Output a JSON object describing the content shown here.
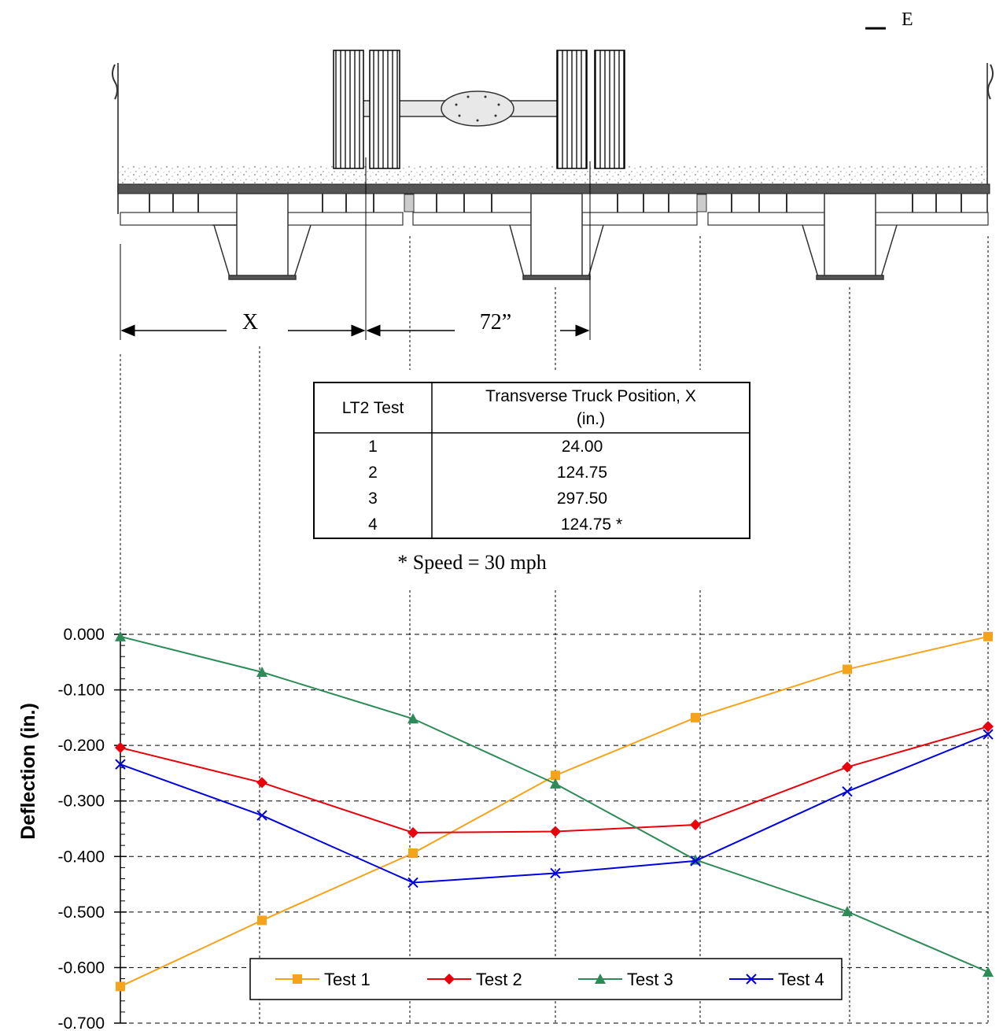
{
  "drawing": {
    "centerline_mark": "E",
    "dim_x_label": "X",
    "dim_72_label": "72”",
    "speed_note": "* Speed = 30 mph"
  },
  "table": {
    "headers": [
      "LT2 Test",
      "Transverse Truck Position, X",
      "(in.)"
    ],
    "rows": [
      [
        "1",
        "24.00"
      ],
      [
        "2",
        "124.75"
      ],
      [
        "3",
        "297.50"
      ],
      [
        "4",
        "124.75 *"
      ]
    ]
  },
  "chart_data": {
    "type": "line",
    "title": "",
    "xlabel": "",
    "ylabel": "Deflection (in.)",
    "ylim": [
      -0.7,
      0.0
    ],
    "yticks": [
      "0.000",
      "-0.100",
      "-0.200",
      "-0.300",
      "-0.400",
      "-0.500",
      "-0.600",
      "-0.700"
    ],
    "x": [
      1,
      2,
      3,
      4,
      5,
      6,
      7
    ],
    "grid": true,
    "legend_position": "bottom-center",
    "series": [
      {
        "name": "Test 1",
        "color": "#f5a31a",
        "marker": "square",
        "values": [
          -0.634,
          -0.515,
          -0.394,
          -0.254,
          -0.15,
          -0.063,
          -0.004
        ]
      },
      {
        "name": "Test 2",
        "color": "#e8000b",
        "marker": "diamond",
        "values": [
          -0.204,
          -0.267,
          -0.357,
          -0.355,
          -0.343,
          -0.239,
          -0.166
        ]
      },
      {
        "name": "Test 3",
        "color": "#2e8b57",
        "marker": "triangle",
        "values": [
          -0.004,
          -0.068,
          -0.152,
          -0.269,
          -0.406,
          -0.499,
          -0.608
        ]
      },
      {
        "name": "Test 4",
        "color": "#0000dd",
        "marker": "x",
        "values": [
          -0.234,
          -0.326,
          -0.447,
          -0.43,
          -0.408,
          -0.283,
          -0.18
        ]
      }
    ]
  }
}
